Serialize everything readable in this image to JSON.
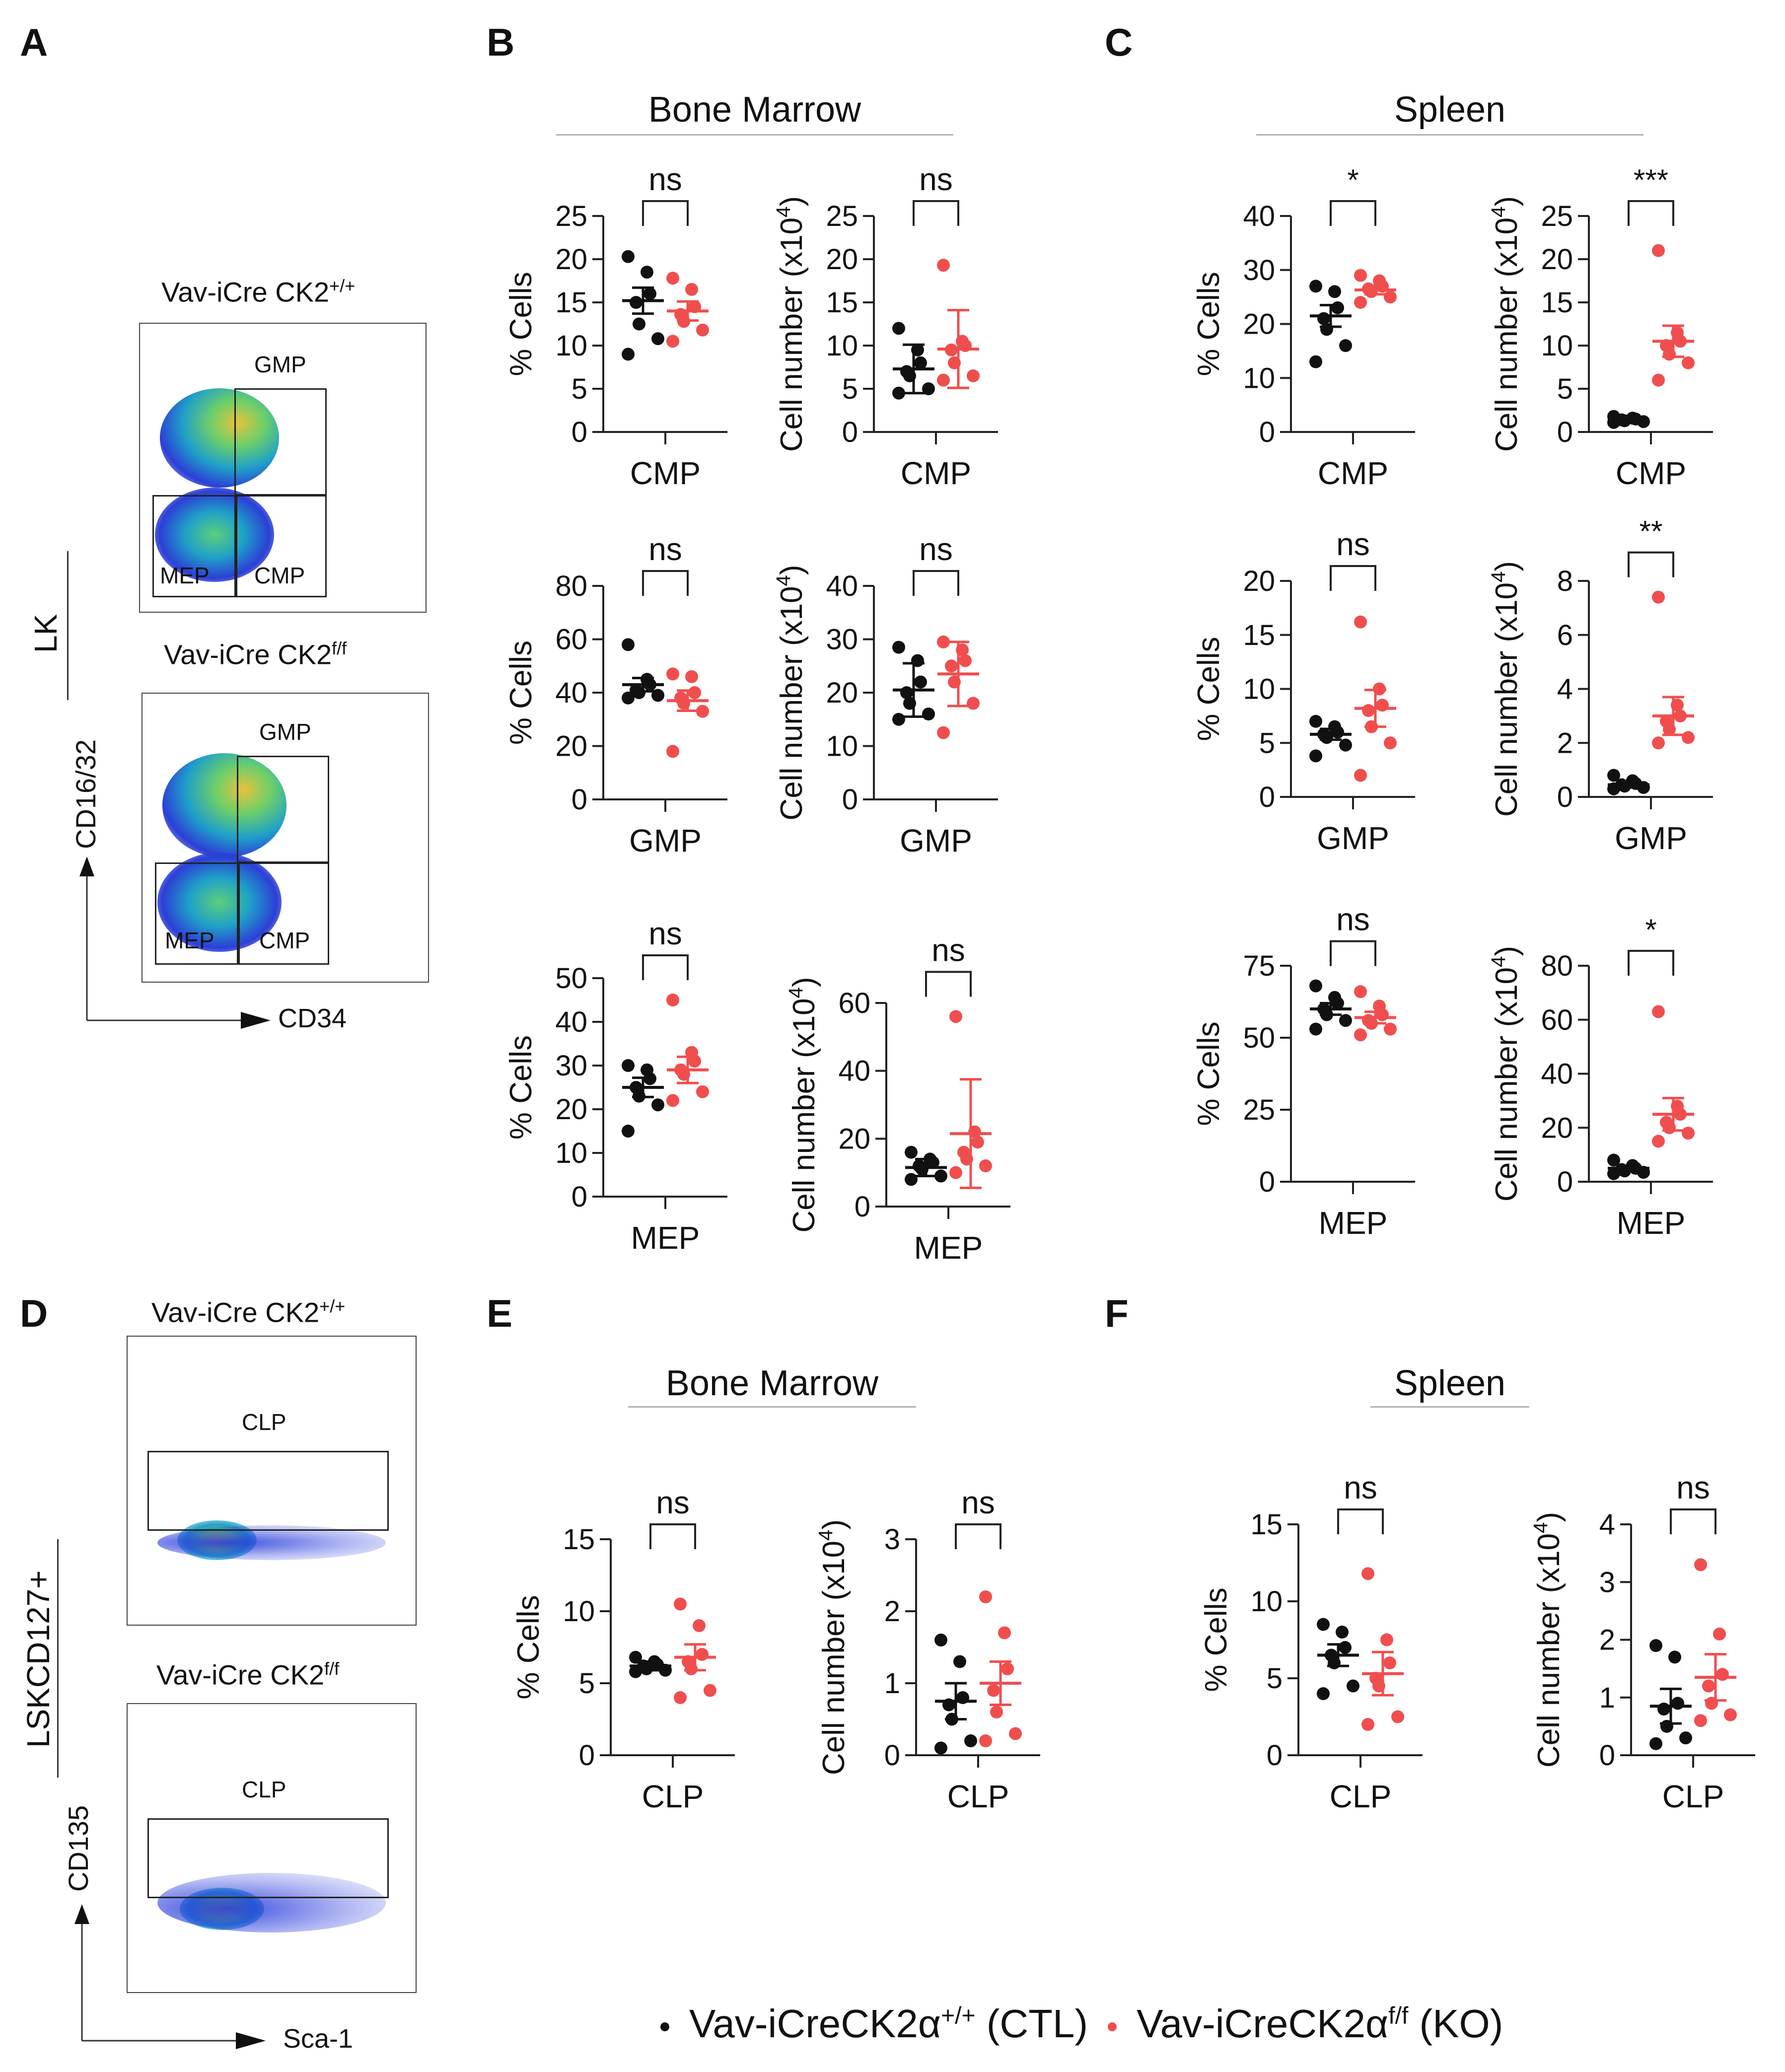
{
  "panels": {
    "A": "A",
    "B": "B",
    "C": "C",
    "D": "D",
    "E": "E",
    "F": "F"
  },
  "section_titles": {
    "B": "Bone Marrow",
    "C": "Spleen",
    "E": "Bone Marrow",
    "F": "Spleen"
  },
  "flow_A": {
    "top_title": "Vav-iCre CK2",
    "top_sup": "+/+",
    "bottom_title": "Vav-iCre CK2",
    "bottom_sup": "f/f",
    "side_label": "LK",
    "y_axis": "CD16/32",
    "x_axis": "CD34",
    "gates": {
      "gmp": "GMP",
      "mep": "MEP",
      "cmp": "CMP"
    }
  },
  "flow_D": {
    "top_title": "Vav-iCre CK2",
    "top_sup": "+/+",
    "bottom_title": "Vav-iCre CK2",
    "bottom_sup": "f/f",
    "side_label": "LSKCD127+",
    "y_axis": "CD135",
    "x_axis": "Sca-1",
    "gate": "CLP"
  },
  "legend": {
    "ctl_label": "Vav-iCreCK2α",
    "ctl_sup": "+/+",
    "ctl_suffix": " (CTL)",
    "ko_label": "Vav-iCreCK2α",
    "ko_sup": "f/f",
    "ko_suffix": " (KO)",
    "ctl_color": "#111111",
    "ko_color": "#f04e4e"
  },
  "chart_data": [
    {
      "id": "b_cmp_pct",
      "type": "scatter",
      "ylabel": "% Cells",
      "xlabel": "CMP",
      "ylim": [
        0,
        25
      ],
      "yticks": [
        0,
        5,
        10,
        15,
        20,
        25
      ],
      "sig": "ns",
      "series": [
        {
          "name": "CTL",
          "values": [
            20.3,
            18.5,
            16.0,
            15.0,
            12.5,
            10.8,
            9.0
          ],
          "mean": 15.2,
          "err": 1.5
        },
        {
          "name": "KO",
          "values": [
            17.8,
            16.5,
            14.5,
            13.6,
            12.8,
            11.8,
            10.5
          ],
          "mean": 14.0,
          "err": 1.1
        }
      ]
    },
    {
      "id": "b_cmp_num",
      "type": "scatter",
      "ylabel": "Cell number (x10",
      "ylabel_sup": "4",
      "ylabel_end": ")",
      "xlabel": "CMP",
      "ylim": [
        0,
        25
      ],
      "yticks": [
        0,
        5,
        10,
        15,
        20,
        25
      ],
      "sig": "ns",
      "series": [
        {
          "name": "CTL",
          "values": [
            12.0,
            9.5,
            8.0,
            7.0,
            6.5,
            5.0,
            4.5
          ],
          "mean": 7.3,
          "err": 2.8
        },
        {
          "name": "KO",
          "values": [
            19.3,
            10.5,
            10.0,
            9.5,
            8.0,
            6.5,
            6.0
          ],
          "mean": 9.6,
          "err": 4.5
        }
      ]
    },
    {
      "id": "b_gmp_pct",
      "type": "scatter",
      "ylabel": "% Cells",
      "xlabel": "GMP",
      "ylim": [
        0,
        80
      ],
      "yticks": [
        0,
        20,
        40,
        60,
        80
      ],
      "sig": "ns",
      "series": [
        {
          "name": "CTL",
          "values": [
            58.0,
            45.0,
            43.0,
            41.0,
            40.0,
            39.0,
            38.0
          ],
          "mean": 43.0,
          "err": 2.5
        },
        {
          "name": "KO",
          "values": [
            47.0,
            46.0,
            40.0,
            38.0,
            36.0,
            33.0,
            18.0
          ],
          "mean": 37.0,
          "err": 3.8
        }
      ]
    },
    {
      "id": "b_gmp_num",
      "type": "scatter",
      "ylabel": "Cell number (x10",
      "ylabel_sup": "4",
      "ylabel_end": ")",
      "xlabel": "GMP",
      "ylim": [
        0,
        40
      ],
      "yticks": [
        0,
        10,
        20,
        30,
        40
      ],
      "sig": "ns",
      "series": [
        {
          "name": "CTL",
          "values": [
            28.5,
            26.0,
            22.0,
            20.0,
            18.0,
            16.0,
            15.0
          ],
          "mean": 20.5,
          "err": 5.0
        },
        {
          "name": "KO",
          "values": [
            29.5,
            28.0,
            26.0,
            25.0,
            22.0,
            18.0,
            12.5
          ],
          "mean": 23.5,
          "err": 6.0
        }
      ]
    },
    {
      "id": "b_mep_pct",
      "type": "scatter",
      "ylabel": "% Cells",
      "xlabel": "MEP",
      "ylim": [
        0,
        50
      ],
      "yticks": [
        0,
        10,
        20,
        30,
        40,
        50
      ],
      "sig": "ns",
      "series": [
        {
          "name": "CTL",
          "values": [
            30.0,
            29.0,
            27.0,
            25.0,
            23.0,
            21.0,
            15.0
          ],
          "mean": 25.0,
          "err": 2.2
        },
        {
          "name": "KO",
          "values": [
            45.0,
            33.0,
            31.0,
            29.0,
            28.0,
            24.0,
            22.0
          ],
          "mean": 29.0,
          "err": 3.0
        }
      ]
    },
    {
      "id": "b_mep_num",
      "type": "scatter",
      "ylabel": "Cell number (x10",
      "ylabel_sup": "4",
      "ylabel_end": ")",
      "xlabel": "MEP",
      "ylim": [
        0,
        60
      ],
      "yticks": [
        0,
        20,
        40,
        60
      ],
      "sig": "ns",
      "series": [
        {
          "name": "CTL",
          "values": [
            16.0,
            14.0,
            13.0,
            12.0,
            11.0,
            9.0,
            8.0
          ],
          "mean": 11.5,
          "err": 2.5
        },
        {
          "name": "KO",
          "values": [
            56.0,
            22.0,
            19.0,
            16.0,
            14.0,
            12.0,
            10.0
          ],
          "mean": 21.5,
          "err": 16.0
        }
      ]
    },
    {
      "id": "c_cmp_pct",
      "type": "scatter",
      "ylabel": "% Cells",
      "xlabel": "CMP",
      "ylim": [
        0,
        40
      ],
      "yticks": [
        0,
        10,
        20,
        30,
        40
      ],
      "sig": "*",
      "series": [
        {
          "name": "CTL",
          "values": [
            27.0,
            26.0,
            23.0,
            21.0,
            19.0,
            16.0,
            13.0
          ],
          "mean": 21.5,
          "err": 2.0
        },
        {
          "name": "KO",
          "values": [
            29.0,
            28.0,
            27.0,
            26.5,
            26.0,
            25.0,
            24.0
          ],
          "mean": 26.3,
          "err": 0.8
        }
      ]
    },
    {
      "id": "c_cmp_num",
      "type": "scatter",
      "ylabel": "Cell number (x10",
      "ylabel_sup": "4",
      "ylabel_end": ")",
      "xlabel": "CMP",
      "ylim": [
        0,
        25
      ],
      "yticks": [
        0,
        5,
        10,
        15,
        20,
        25
      ],
      "sig": "***",
      "series": [
        {
          "name": "CTL",
          "values": [
            1.8,
            1.6,
            1.5,
            1.4,
            1.3,
            1.2,
            1.1
          ],
          "mean": 1.4,
          "err": 0.2
        },
        {
          "name": "KO",
          "values": [
            21.0,
            11.5,
            10.5,
            10.0,
            9.0,
            8.0,
            6.0
          ],
          "mean": 10.5,
          "err": 1.8
        }
      ]
    },
    {
      "id": "c_gmp_pct",
      "type": "scatter",
      "ylabel": "% Cells",
      "xlabel": "GMP",
      "ylim": [
        0,
        20
      ],
      "yticks": [
        0,
        5,
        10,
        15,
        20
      ],
      "sig": "ns",
      "series": [
        {
          "name": "CTL",
          "values": [
            7.0,
            6.5,
            6.0,
            5.8,
            5.5,
            4.8,
            3.8
          ],
          "mean": 5.8,
          "err": 0.5
        },
        {
          "name": "KO",
          "values": [
            16.2,
            10.0,
            8.5,
            8.0,
            6.5,
            5.0,
            2.0
          ],
          "mean": 8.2,
          "err": 1.7
        }
      ]
    },
    {
      "id": "c_gmp_num",
      "type": "scatter",
      "ylabel": "Cell number (x10",
      "ylabel_sup": "4",
      "ylabel_end": ")",
      "xlabel": "GMP",
      "ylim": [
        0,
        8
      ],
      "yticks": [
        0,
        2,
        4,
        6,
        8
      ],
      "sig": "**",
      "series": [
        {
          "name": "CTL",
          "values": [
            0.8,
            0.6,
            0.5,
            0.45,
            0.4,
            0.35,
            0.3
          ],
          "mean": 0.45,
          "err": 0.1
        },
        {
          "name": "KO",
          "values": [
            7.4,
            3.4,
            3.0,
            2.8,
            2.5,
            2.2,
            2.0
          ],
          "mean": 3.0,
          "err": 0.7
        }
      ]
    },
    {
      "id": "c_mep_pct",
      "type": "scatter",
      "ylabel": "% Cells",
      "xlabel": "MEP",
      "ylim": [
        0,
        75
      ],
      "yticks": [
        0,
        25,
        50,
        75
      ],
      "sig": "ns",
      "series": [
        {
          "name": "CTL",
          "values": [
            68.0,
            64.0,
            62.0,
            60.0,
            58.0,
            56.0,
            53.0
          ],
          "mean": 60.0,
          "err": 2.0
        },
        {
          "name": "KO",
          "values": [
            66.0,
            61.0,
            58.0,
            56.0,
            55.0,
            53.0,
            51.0
          ],
          "mean": 57.0,
          "err": 2.0
        }
      ]
    },
    {
      "id": "c_mep_num",
      "type": "scatter",
      "ylabel": "Cell number (x10",
      "ylabel_sup": "4",
      "ylabel_end": ")",
      "xlabel": "MEP",
      "ylim": [
        0,
        80
      ],
      "yticks": [
        0,
        20,
        40,
        60,
        80
      ],
      "sig": "*",
      "series": [
        {
          "name": "CTL",
          "values": [
            8.0,
            6.0,
            5.0,
            4.5,
            4.0,
            3.5,
            3.0
          ],
          "mean": 5.0,
          "err": 1.0
        },
        {
          "name": "KO",
          "values": [
            63.0,
            28.0,
            25.0,
            22.0,
            20.0,
            18.0,
            15.0
          ],
          "mean": 25.0,
          "err": 6.0
        }
      ]
    },
    {
      "id": "e_clp_pct",
      "type": "scatter",
      "ylabel": "% Cells",
      "xlabel": "CLP",
      "ylim": [
        0,
        15
      ],
      "yticks": [
        0,
        5,
        10,
        15
      ],
      "sig": "ns",
      "series": [
        {
          "name": "CTL",
          "values": [
            6.8,
            6.5,
            6.3,
            6.2,
            6.0,
            5.9,
            5.8
          ],
          "mean": 6.2,
          "err": 0.3
        },
        {
          "name": "KO",
          "values": [
            10.5,
            9.0,
            7.0,
            6.5,
            6.0,
            4.5,
            4.0
          ],
          "mean": 6.8,
          "err": 0.9
        }
      ]
    },
    {
      "id": "e_clp_num",
      "type": "scatter",
      "ylabel": "Cell number (x10",
      "ylabel_sup": "4",
      "ylabel_end": ")",
      "xlabel": "CLP",
      "ylim": [
        0,
        3
      ],
      "yticks": [
        0,
        1,
        2,
        3
      ],
      "sig": "ns",
      "series": [
        {
          "name": "CTL",
          "values": [
            1.6,
            1.3,
            0.8,
            0.7,
            0.5,
            0.2,
            0.1
          ],
          "mean": 0.75,
          "err": 0.25
        },
        {
          "name": "KO",
          "values": [
            2.2,
            1.7,
            1.2,
            0.9,
            0.6,
            0.3,
            0.2
          ],
          "mean": 1.0,
          "err": 0.3
        }
      ]
    },
    {
      "id": "f_clp_pct",
      "type": "scatter",
      "ylabel": "% Cells",
      "xlabel": "CLP",
      "ylim": [
        0,
        15
      ],
      "yticks": [
        0,
        5,
        10,
        15
      ],
      "sig": "ns",
      "series": [
        {
          "name": "CTL",
          "values": [
            8.5,
            8.0,
            7.0,
            6.5,
            6.0,
            4.5,
            4.0
          ],
          "mean": 6.5,
          "err": 0.7
        },
        {
          "name": "KO",
          "values": [
            11.8,
            7.5,
            6.0,
            5.0,
            4.5,
            2.5,
            2.0
          ],
          "mean": 5.3,
          "err": 1.4
        }
      ]
    },
    {
      "id": "f_clp_num",
      "type": "scatter",
      "ylabel": "Cell number (x10",
      "ylabel_sup": "4",
      "ylabel_end": ")",
      "xlabel": "CLP",
      "ylim": [
        0,
        4
      ],
      "yticks": [
        0,
        1,
        2,
        3,
        4
      ],
      "sig": "ns",
      "series": [
        {
          "name": "CTL",
          "values": [
            1.9,
            1.7,
            0.9,
            0.8,
            0.5,
            0.3,
            0.2
          ],
          "mean": 0.85,
          "err": 0.3
        },
        {
          "name": "KO",
          "values": [
            3.3,
            2.1,
            1.4,
            1.2,
            0.9,
            0.7,
            0.6
          ],
          "mean": 1.35,
          "err": 0.4
        }
      ]
    }
  ]
}
